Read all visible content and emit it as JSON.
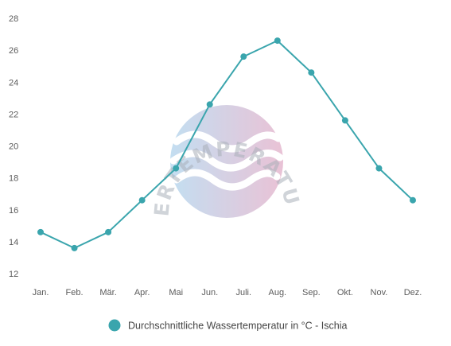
{
  "chart_data": {
    "type": "line",
    "categories": [
      "Jan.",
      "Feb.",
      "Mär.",
      "Apr.",
      "Mai",
      "Jun.",
      "Juli.",
      "Aug.",
      "Sep.",
      "Okt.",
      "Nov.",
      "Dez."
    ],
    "series": [
      {
        "name": "Durchschnittliche Wassertemperatur in °C - Ischia",
        "values": [
          14.6,
          13.6,
          14.6,
          16.6,
          18.6,
          22.6,
          25.6,
          26.6,
          24.6,
          21.6,
          18.6,
          16.6
        ],
        "color": "#3aa5ad"
      }
    ],
    "yticks": [
      12,
      14,
      16,
      18,
      20,
      22,
      24,
      26,
      28
    ],
    "ylim": [
      12,
      28
    ],
    "title": "",
    "xlabel": "",
    "ylabel": "",
    "grid": false,
    "legend_position": "bottom"
  },
  "watermark": {
    "text": "WASSERTEMPERATUR.ORG",
    "gradient_colors": [
      "#b9d9ef",
      "#e6b8cf"
    ]
  }
}
